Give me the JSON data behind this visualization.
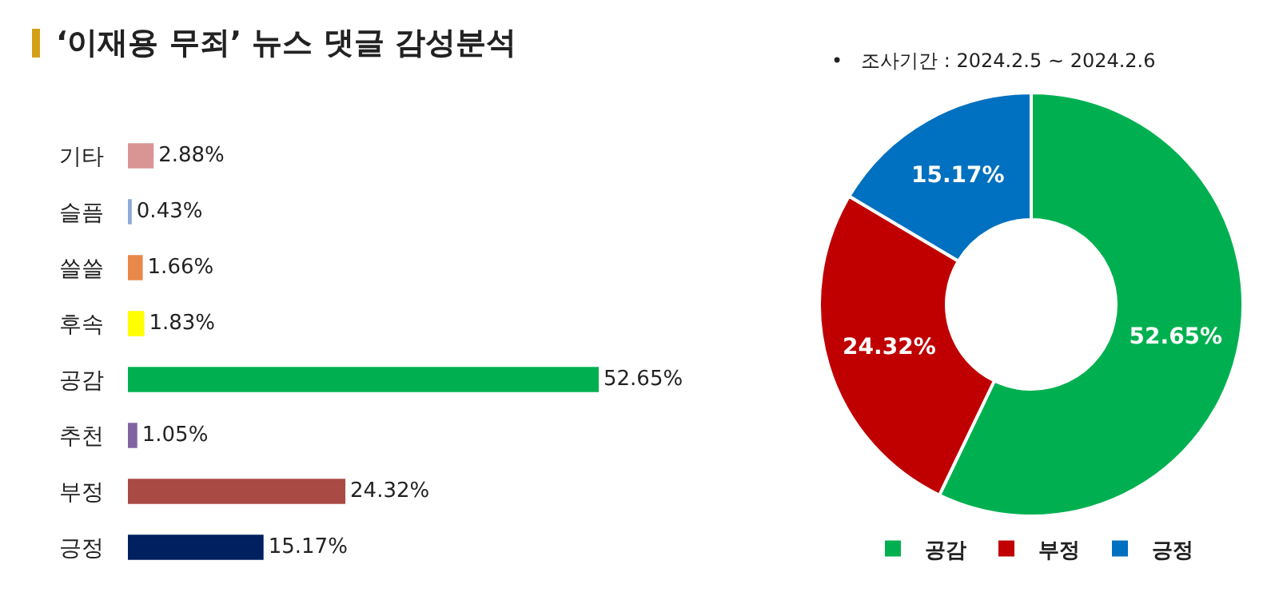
{
  "chart_data": [
    {
      "type": "bar",
      "title": "‘이재용 무죄’ 뉴스 댓글 감성분석",
      "orientation": "horizontal",
      "categories": [
        "기타",
        "슬픔",
        "쓸쓸",
        "후속",
        "공감",
        "추천",
        "부정",
        "긍정"
      ],
      "values": [
        2.88,
        0.43,
        1.66,
        1.83,
        52.65,
        1.05,
        24.32,
        15.17
      ],
      "colors": [
        "#d99594",
        "#8ea9db",
        "#e8884a",
        "#ffff00",
        "#00b050",
        "#8064a2",
        "#a94a45",
        "#002060"
      ],
      "value_labels": [
        "2.88%",
        "0.43%",
        "1.66%",
        "1.83%",
        "52.65%",
        "1.05%",
        "24.32%",
        "15.17%"
      ],
      "legend": false
    },
    {
      "type": "donut",
      "subtitle": "•   조사기간 : 2024.2.5 ~ 2024.2.6",
      "categories": [
        "공감",
        "부정",
        "긍정"
      ],
      "values": [
        52.65,
        24.32,
        15.17
      ],
      "colors": [
        "#00b050",
        "#c00000",
        "#0070c0"
      ],
      "value_labels": [
        "52.65%",
        "24.32%",
        "15.17%"
      ],
      "legend": "bottom"
    }
  ]
}
